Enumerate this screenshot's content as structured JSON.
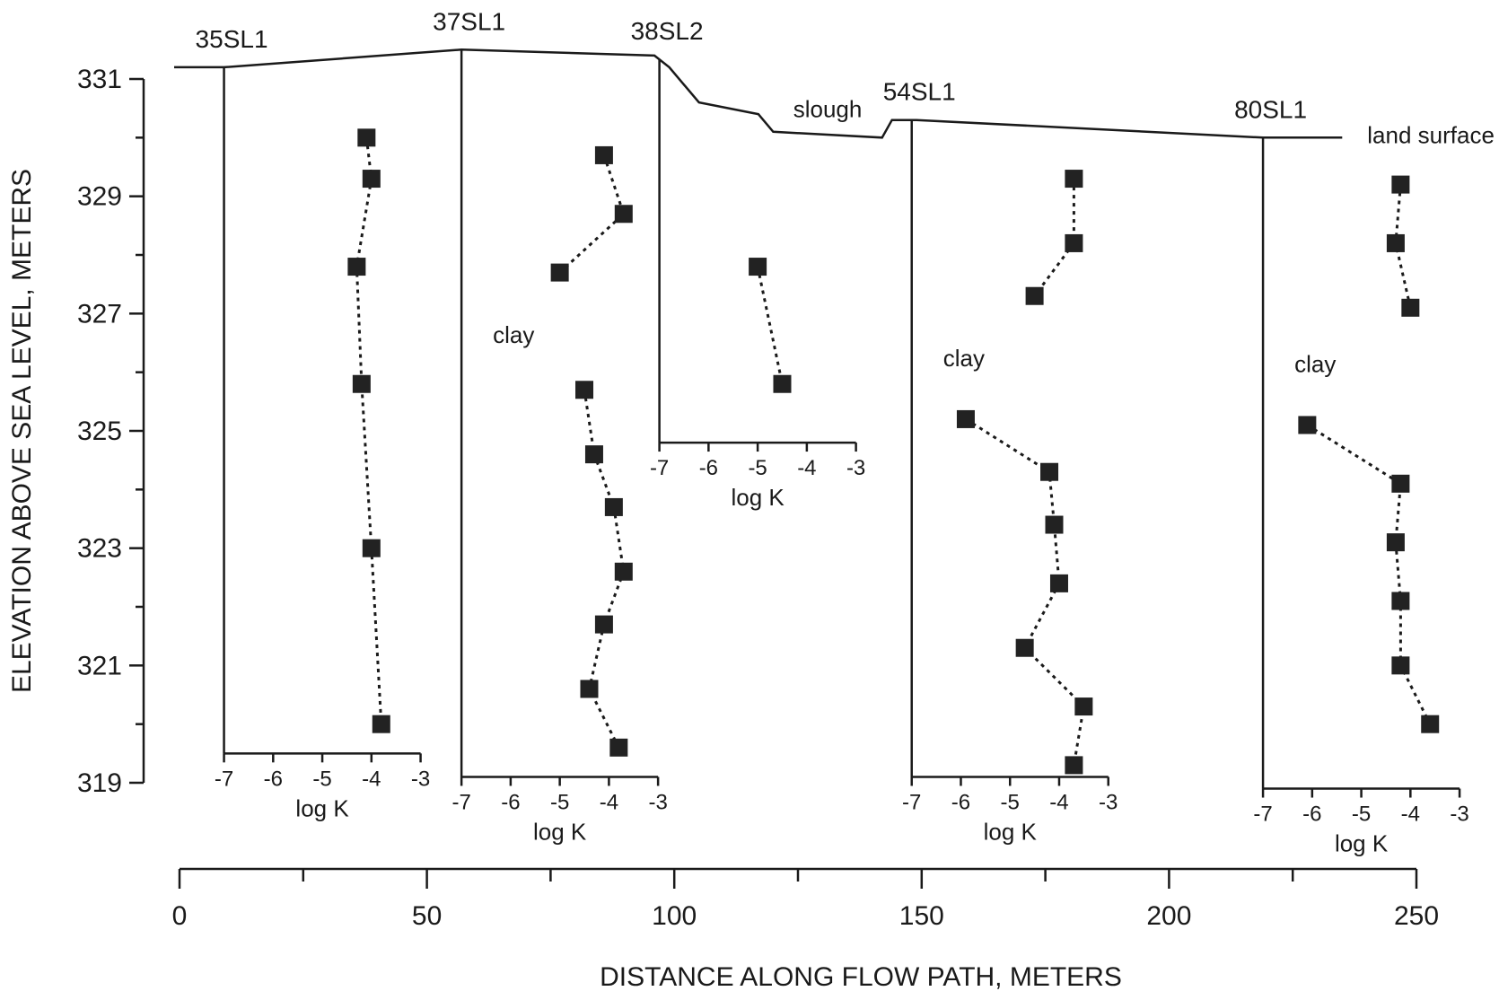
{
  "chart_data": {
    "type": "scatter",
    "ylabel": "ELEVATION ABOVE SEA LEVEL, METERS",
    "xlabel": "DISTANCE ALONG FLOW PATH, METERS",
    "yticks": [
      "331",
      "329",
      "327",
      "325",
      "323",
      "321",
      "319"
    ],
    "xticks": [
      "0",
      "50",
      "100",
      "150",
      "200",
      "250"
    ],
    "ylim": [
      319,
      331
    ],
    "xlim": [
      0,
      250
    ],
    "land_surface_label": "land surface",
    "slough_label": "slough",
    "clay_label": "clay",
    "logk_label": "log K",
    "logk_ticks": [
      "-7",
      "-6",
      "-5",
      "-4",
      "-3"
    ],
    "logk_range": [
      -7,
      -3
    ],
    "land_surface": [
      {
        "x": 0,
        "y": 331.2
      },
      {
        "x": 5,
        "y": 331.2
      },
      {
        "x": 53,
        "y": 331.5
      },
      {
        "x": 92,
        "y": 331.4
      },
      {
        "x": 95,
        "y": 331.2
      },
      {
        "x": 101,
        "y": 330.6
      },
      {
        "x": 113,
        "y": 330.4
      },
      {
        "x": 116,
        "y": 330.1
      },
      {
        "x": 138,
        "y": 330.0
      },
      {
        "x": 140,
        "y": 330.3
      },
      {
        "x": 145,
        "y": 330.3
      },
      {
        "x": 215,
        "y": 330.0
      },
      {
        "x": 231,
        "y": 330.0
      }
    ],
    "wells": [
      {
        "name": "35SL1",
        "distance": 5,
        "bottom": 319.5,
        "intervals": [
          [
            {
              "logk": -4.1,
              "elev": 330.0
            },
            {
              "logk": -4.0,
              "elev": 329.3
            },
            {
              "logk": -4.3,
              "elev": 327.8
            },
            {
              "logk": -4.2,
              "elev": 325.8
            },
            {
              "logk": -4.0,
              "elev": 323.0
            },
            {
              "logk": -3.8,
              "elev": 320.0
            }
          ]
        ]
      },
      {
        "name": "37SL1",
        "distance": 53,
        "bottom": 319.1,
        "clay_elev": 326.5,
        "intervals": [
          [
            {
              "logk": -4.1,
              "elev": 329.7
            },
            {
              "logk": -3.7,
              "elev": 328.7
            },
            {
              "logk": -5.0,
              "elev": 327.7
            }
          ],
          [
            {
              "logk": -4.5,
              "elev": 325.7
            },
            {
              "logk": -4.3,
              "elev": 324.6
            },
            {
              "logk": -3.9,
              "elev": 323.7
            },
            {
              "logk": -3.7,
              "elev": 322.6
            },
            {
              "logk": -4.1,
              "elev": 321.7
            },
            {
              "logk": -4.4,
              "elev": 320.6
            },
            {
              "logk": -3.8,
              "elev": 319.6
            }
          ]
        ]
      },
      {
        "name": "38SL2",
        "distance": 93,
        "bottom": 324.8,
        "intervals": [
          [
            {
              "logk": -5.0,
              "elev": 327.8
            },
            {
              "logk": -4.5,
              "elev": 325.8
            }
          ]
        ]
      },
      {
        "name": "54SL1",
        "distance": 144,
        "bottom": 319.1,
        "clay_elev": 326.1,
        "intervals": [
          [
            {
              "logk": -3.7,
              "elev": 329.3
            },
            {
              "logk": -3.7,
              "elev": 328.2
            },
            {
              "logk": -4.5,
              "elev": 327.3
            }
          ],
          [
            {
              "logk": -5.9,
              "elev": 325.2
            },
            {
              "logk": -4.2,
              "elev": 324.3
            },
            {
              "logk": -4.1,
              "elev": 323.4
            },
            {
              "logk": -4.0,
              "elev": 322.4
            },
            {
              "logk": -4.7,
              "elev": 321.3
            },
            {
              "logk": -3.5,
              "elev": 320.3
            },
            {
              "logk": -3.7,
              "elev": 319.3
            }
          ]
        ]
      },
      {
        "name": "80SL1",
        "distance": 215,
        "bottom": 318.9,
        "clay_elev": 326.0,
        "intervals": [
          [
            {
              "logk": -4.2,
              "elev": 329.2
            },
            {
              "logk": -4.3,
              "elev": 328.2
            },
            {
              "logk": -4.0,
              "elev": 327.1
            }
          ],
          [
            {
              "logk": -6.1,
              "elev": 325.1
            },
            {
              "logk": -4.2,
              "elev": 324.1
            },
            {
              "logk": -4.3,
              "elev": 323.1
            },
            {
              "logk": -4.2,
              "elev": 322.1
            },
            {
              "logk": -4.2,
              "elev": 321.0
            },
            {
              "logk": -3.6,
              "elev": 320.0
            }
          ]
        ]
      }
    ]
  }
}
